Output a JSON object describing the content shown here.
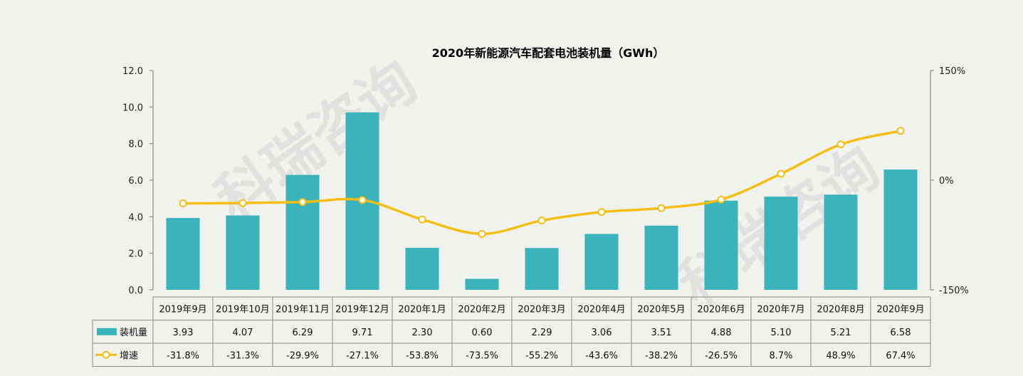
{
  "watermark": "科瑞咨询",
  "chart_data": {
    "type": "bar+line",
    "title": "2020年新能源汽车配套电池装机量（GWh）",
    "categories": [
      "2019年9月",
      "2019年10月",
      "2019年11月",
      "2019年12月",
      "2020年1月",
      "2020年2月",
      "2020年3月",
      "2020年4月",
      "2020年5月",
      "2020年6月",
      "2020年7月",
      "2020年8月",
      "2020年9月"
    ],
    "series": [
      {
        "name": "装机量",
        "type": "bar",
        "axis": "left",
        "color": "#3bb3bb",
        "values": [
          3.93,
          4.07,
          6.29,
          9.71,
          2.3,
          0.6,
          2.29,
          3.06,
          3.51,
          4.88,
          5.1,
          5.21,
          6.58
        ],
        "labels": [
          "3.93",
          "4.07",
          "6.29",
          "9.71",
          "2.30",
          "0.60",
          "2.29",
          "3.06",
          "3.51",
          "4.88",
          "5.10",
          "5.21",
          "6.58"
        ]
      },
      {
        "name": "增速",
        "type": "line",
        "axis": "right",
        "color": "#f5be12",
        "values": [
          -31.8,
          -31.3,
          -29.9,
          -27.1,
          -53.8,
          -73.5,
          -55.2,
          -43.6,
          -38.2,
          -26.5,
          8.7,
          48.9,
          67.4
        ],
        "labels": [
          "-31.8%",
          "-31.3%",
          "-29.9%",
          "-27.1%",
          "-53.8%",
          "-73.5%",
          "-55.2%",
          "-43.6%",
          "-38.2%",
          "-26.5%",
          "8.7%",
          "48.9%",
          "67.4%"
        ]
      }
    ],
    "y_left": {
      "min": 0,
      "max": 12,
      "step": 2,
      "ticks": [
        "0.0",
        "2.0",
        "4.0",
        "6.0",
        "8.0",
        "10.0",
        "12.0"
      ]
    },
    "y_right": {
      "min": -150,
      "max": 150,
      "ticks": [
        "-150%",
        "0%",
        "150%"
      ]
    },
    "legend": "data-table",
    "grid": false
  }
}
